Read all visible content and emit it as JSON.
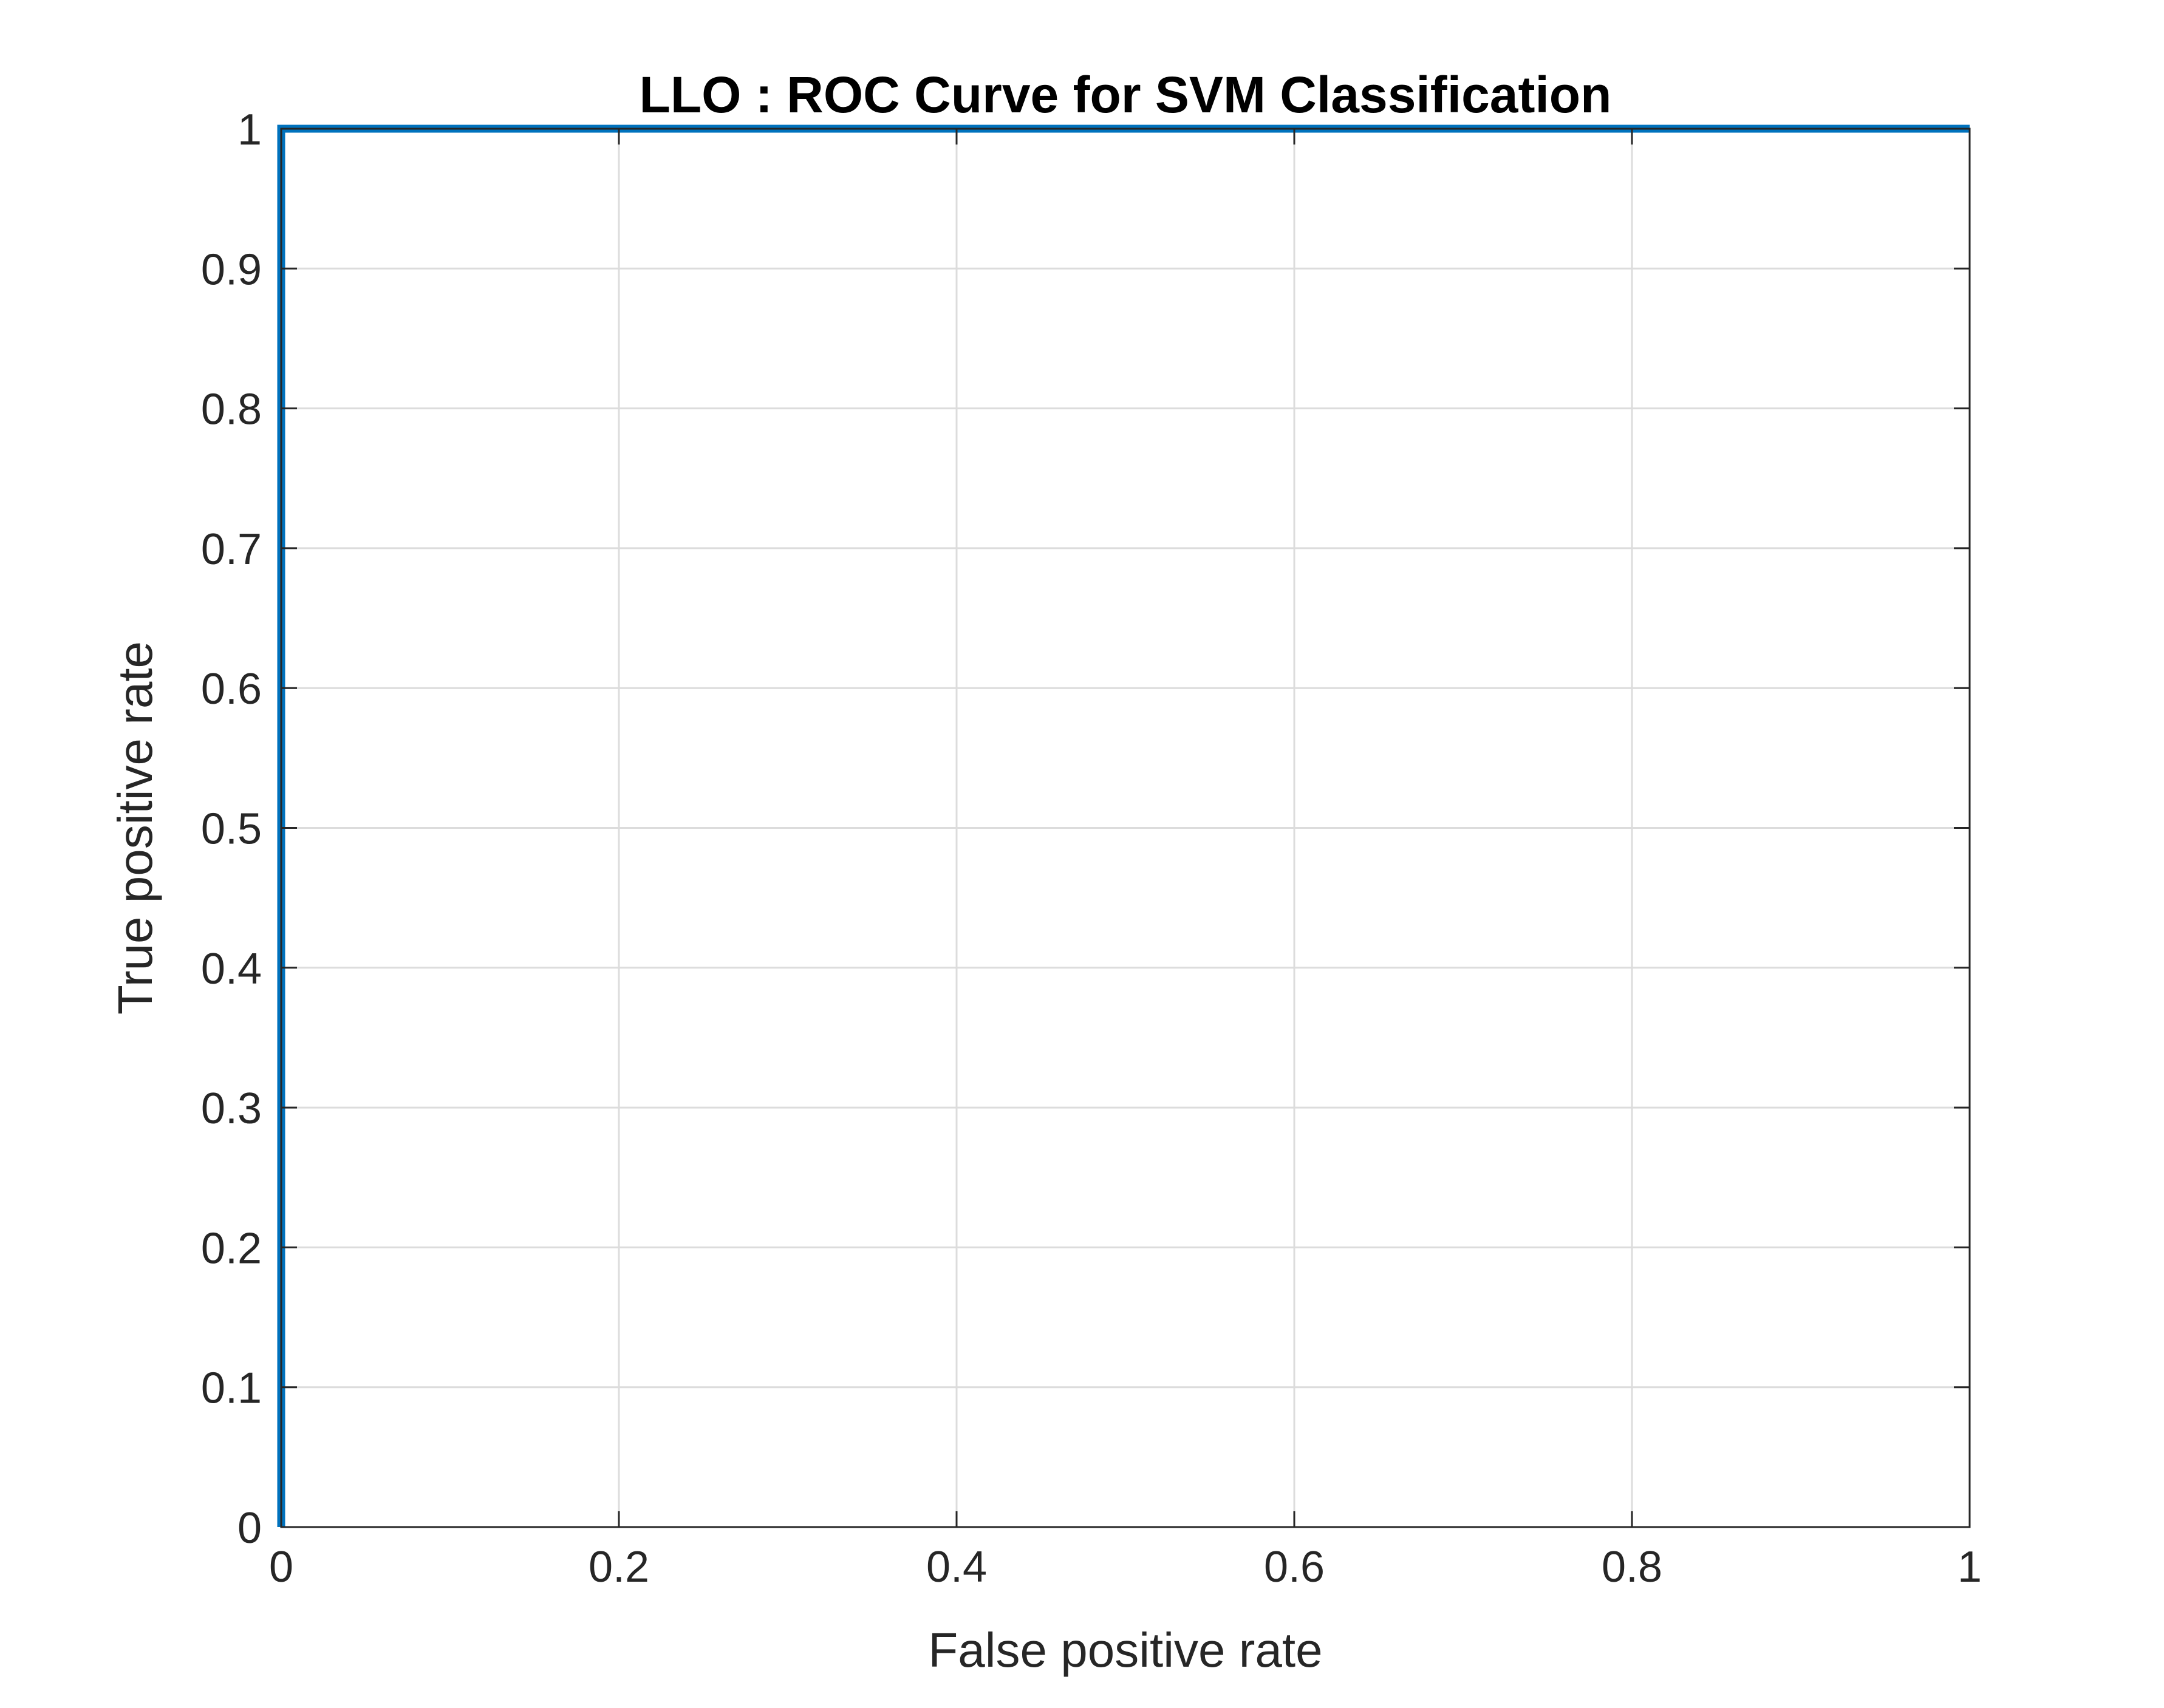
{
  "chart_data": {
    "type": "line",
    "title": "LLO : ROC Curve for SVM Classification",
    "xlabel": "False positive rate",
    "ylabel": "True positive rate",
    "xlim": [
      0,
      1
    ],
    "ylim": [
      0,
      1
    ],
    "x_ticks": [
      "0",
      "0.2",
      "0.4",
      "0.6",
      "0.8",
      "1"
    ],
    "y_ticks": [
      "0",
      "0.1",
      "0.2",
      "0.3",
      "0.4",
      "0.5",
      "0.6",
      "0.7",
      "0.8",
      "0.9",
      "1"
    ],
    "grid": true,
    "series": [
      {
        "x": [
          0,
          0,
          1
        ],
        "y": [
          0,
          1,
          1
        ],
        "color": "#0072BD"
      }
    ]
  }
}
